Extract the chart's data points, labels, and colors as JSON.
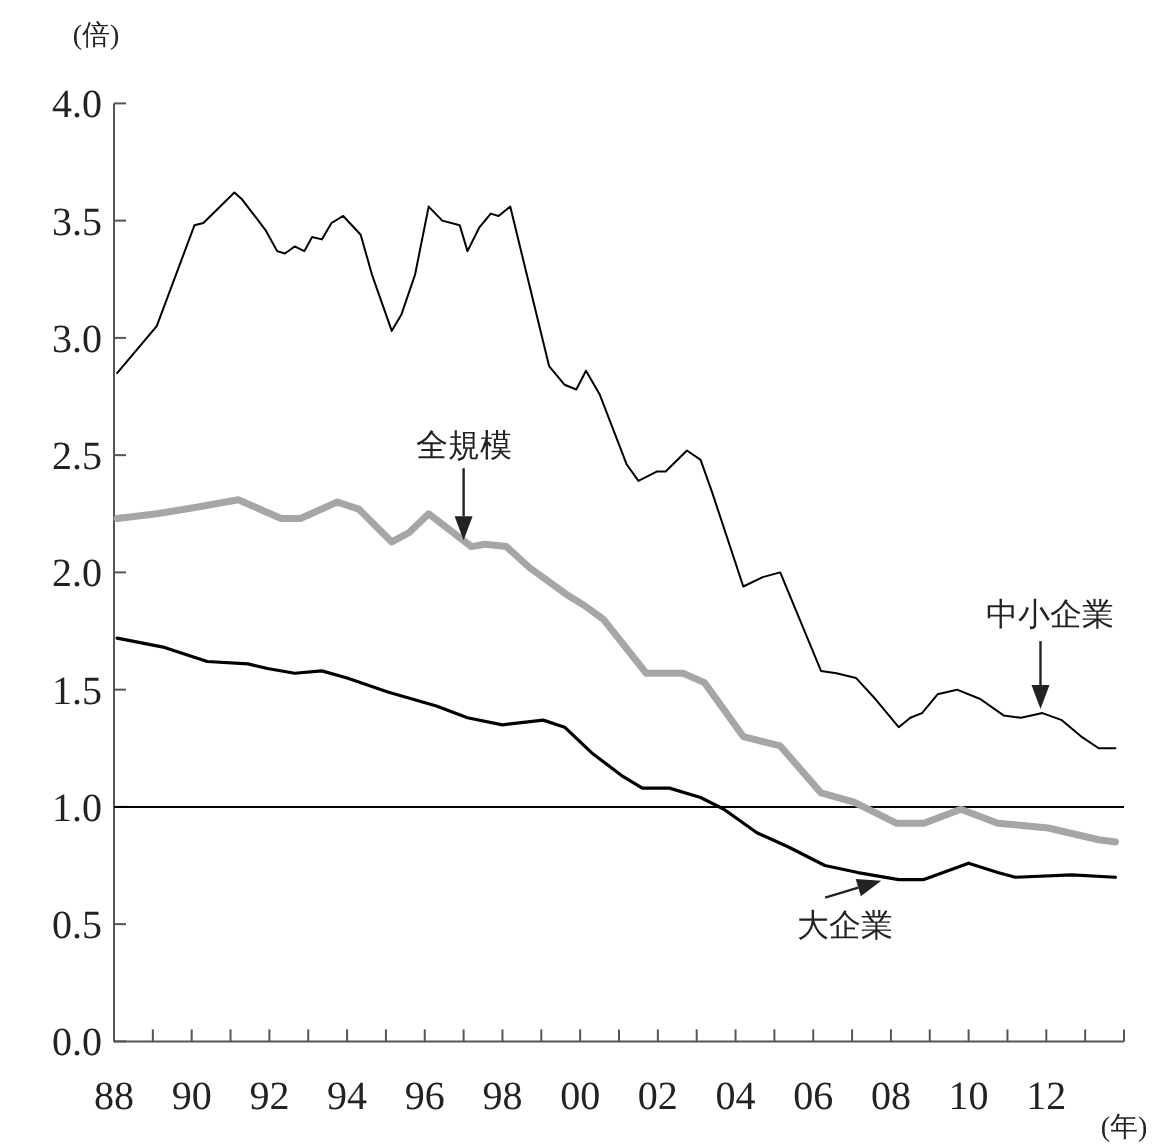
{
  "chart_data": {
    "type": "line",
    "ylabel": "(倍)",
    "xlabel": "(年)",
    "xlim": [
      1988,
      2014
    ],
    "ylim": [
      0,
      4
    ],
    "xticks": [
      {
        "value": 1988,
        "label": "88"
      },
      {
        "value": 1989,
        "label": null
      },
      {
        "value": 1990,
        "label": "90"
      },
      {
        "value": 1991,
        "label": null
      },
      {
        "value": 1992,
        "label": "92"
      },
      {
        "value": 1993,
        "label": null
      },
      {
        "value": 1994,
        "label": "94"
      },
      {
        "value": 1995,
        "label": null
      },
      {
        "value": 1996,
        "label": "96"
      },
      {
        "value": 1997,
        "label": null
      },
      {
        "value": 1998,
        "label": "98"
      },
      {
        "value": 1999,
        "label": null
      },
      {
        "value": 2000,
        "label": "00"
      },
      {
        "value": 2001,
        "label": null
      },
      {
        "value": 2002,
        "label": "02"
      },
      {
        "value": 2003,
        "label": null
      },
      {
        "value": 2004,
        "label": "04"
      },
      {
        "value": 2005,
        "label": null
      },
      {
        "value": 2006,
        "label": "06"
      },
      {
        "value": 2007,
        "label": null
      },
      {
        "value": 2008,
        "label": "08"
      },
      {
        "value": 2009,
        "label": null
      },
      {
        "value": 2010,
        "label": "10"
      },
      {
        "value": 2011,
        "label": null
      },
      {
        "value": 2012,
        "label": "12"
      },
      {
        "value": 2013,
        "label": null
      },
      {
        "value": 2014,
        "label": null
      }
    ],
    "yticks": [
      {
        "value": 0,
        "label": "0.0"
      },
      {
        "value": 0.5,
        "label": "0.5"
      },
      {
        "value": 1,
        "label": "1.0"
      },
      {
        "value": 1.5,
        "label": "1.5"
      },
      {
        "value": 2,
        "label": "2.0"
      },
      {
        "value": 2.5,
        "label": "2.5"
      },
      {
        "value": 3,
        "label": "3.0"
      },
      {
        "value": 3.5,
        "label": "3.5"
      },
      {
        "value": 4,
        "label": "4.0"
      }
    ],
    "line_style": "solid",
    "ref_lines": [
      {
        "axis": "y",
        "value": 1,
        "color": "#000000"
      }
    ],
    "series": [
      {
        "color": "#000000",
        "x": [
          1988.08,
          1989.1,
          1990.07,
          1990.3,
          1991.1,
          1991.3,
          1991.9,
          1992.2,
          1992.4,
          1992.65,
          1992.9,
          1993.1,
          1993.35,
          1993.6,
          1993.9,
          1994.35,
          1994.64,
          1995.15,
          1995.4,
          1995.75,
          1996.1,
          1996.45,
          1996.9,
          1997.1,
          1997.4,
          1997.7,
          1997.9,
          1998.2,
          1998.7,
          1999.2,
          1999.6,
          1999.9,
          2000.15,
          2000.5,
          2001.2,
          2001.5,
          2001.97,
          2002.2,
          2002.75,
          2003.1,
          2003.4,
          2004.2,
          2004.7,
          2005.15,
          2006.2,
          2006.6,
          2007.1,
          2007.6,
          2008.2,
          2008.5,
          2008.8,
          2009.2,
          2009.7,
          2010.3,
          2010.9,
          2011.35,
          2011.9,
          2012.4,
          2012.9,
          2013.35,
          2013.78
        ],
        "values": [
          2.85,
          3.05,
          3.48,
          3.49,
          3.62,
          3.59,
          3.46,
          3.37,
          3.36,
          3.39,
          3.37,
          3.43,
          3.42,
          3.49,
          3.52,
          3.44,
          3.27,
          3.03,
          3.1,
          3.27,
          3.56,
          3.5,
          3.48,
          3.37,
          3.47,
          3.53,
          3.52,
          3.56,
          3.22,
          2.88,
          2.8,
          2.78,
          2.86,
          2.76,
          2.46,
          2.39,
          2.43,
          2.43,
          2.52,
          2.48,
          2.34,
          1.94,
          1.98,
          2.0,
          1.58,
          1.57,
          1.55,
          1.46,
          1.34,
          1.38,
          1.4,
          1.48,
          1.5,
          1.46,
          1.39,
          1.38,
          1.4,
          1.37,
          1.3,
          1.25,
          1.25
        ]
      },
      {
        "color": "#a6a6a6",
        "x": [
          1988.08,
          1989.1,
          1990.2,
          1991.2,
          1992.3,
          1992.8,
          1993.75,
          1994.3,
          1995.15,
          1995.6,
          1996.1,
          1997.2,
          1997.55,
          1998.1,
          1998.7,
          1999.7,
          2000.1,
          2000.6,
          2001.7,
          2002.65,
          2003.2,
          2004.2,
          2005.15,
          2006.2,
          2007.05,
          2008.15,
          2008.85,
          2009.8,
          2010.75,
          2011.45,
          2012.05,
          2013.35,
          2013.78
        ],
        "values": [
          2.23,
          2.25,
          2.28,
          2.31,
          2.23,
          2.23,
          2.3,
          2.27,
          2.13,
          2.17,
          2.25,
          2.11,
          2.12,
          2.11,
          2.02,
          1.9,
          1.86,
          1.8,
          1.57,
          1.57,
          1.53,
          1.3,
          1.26,
          1.06,
          1.02,
          0.93,
          0.93,
          0.99,
          0.93,
          0.92,
          0.91,
          0.86,
          0.85
        ]
      },
      {
        "color": "#000000",
        "x": [
          1988.08,
          1989.3,
          1990.4,
          1991.45,
          1991.95,
          1992.65,
          1993.35,
          1994.0,
          1995.05,
          1996.3,
          1997.1,
          1998.0,
          1999.05,
          1999.6,
          2000.3,
          2001.1,
          2001.6,
          2002.3,
          2003.1,
          2003.7,
          2004.55,
          2005.35,
          2006.3,
          2007.15,
          2008.2,
          2008.85,
          2010.0,
          2010.75,
          2011.2,
          2012.65,
          2013.78
        ],
        "values": [
          1.72,
          1.68,
          1.62,
          1.61,
          1.59,
          1.57,
          1.58,
          1.55,
          1.49,
          1.43,
          1.38,
          1.35,
          1.37,
          1.34,
          1.23,
          1.13,
          1.08,
          1.08,
          1.04,
          0.99,
          0.89,
          0.83,
          0.75,
          0.72,
          0.69,
          0.69,
          0.76,
          0.72,
          0.7,
          0.71,
          0.7
        ]
      }
    ],
    "annotations": [
      {
        "text": "全規模",
        "x": 1997.0,
        "y": 2.12
      },
      {
        "text": "中小企業",
        "x": 2011.85,
        "y": 1.4
      },
      {
        "text": "大企業",
        "x": 2007.85,
        "y": 0.69
      }
    ]
  }
}
